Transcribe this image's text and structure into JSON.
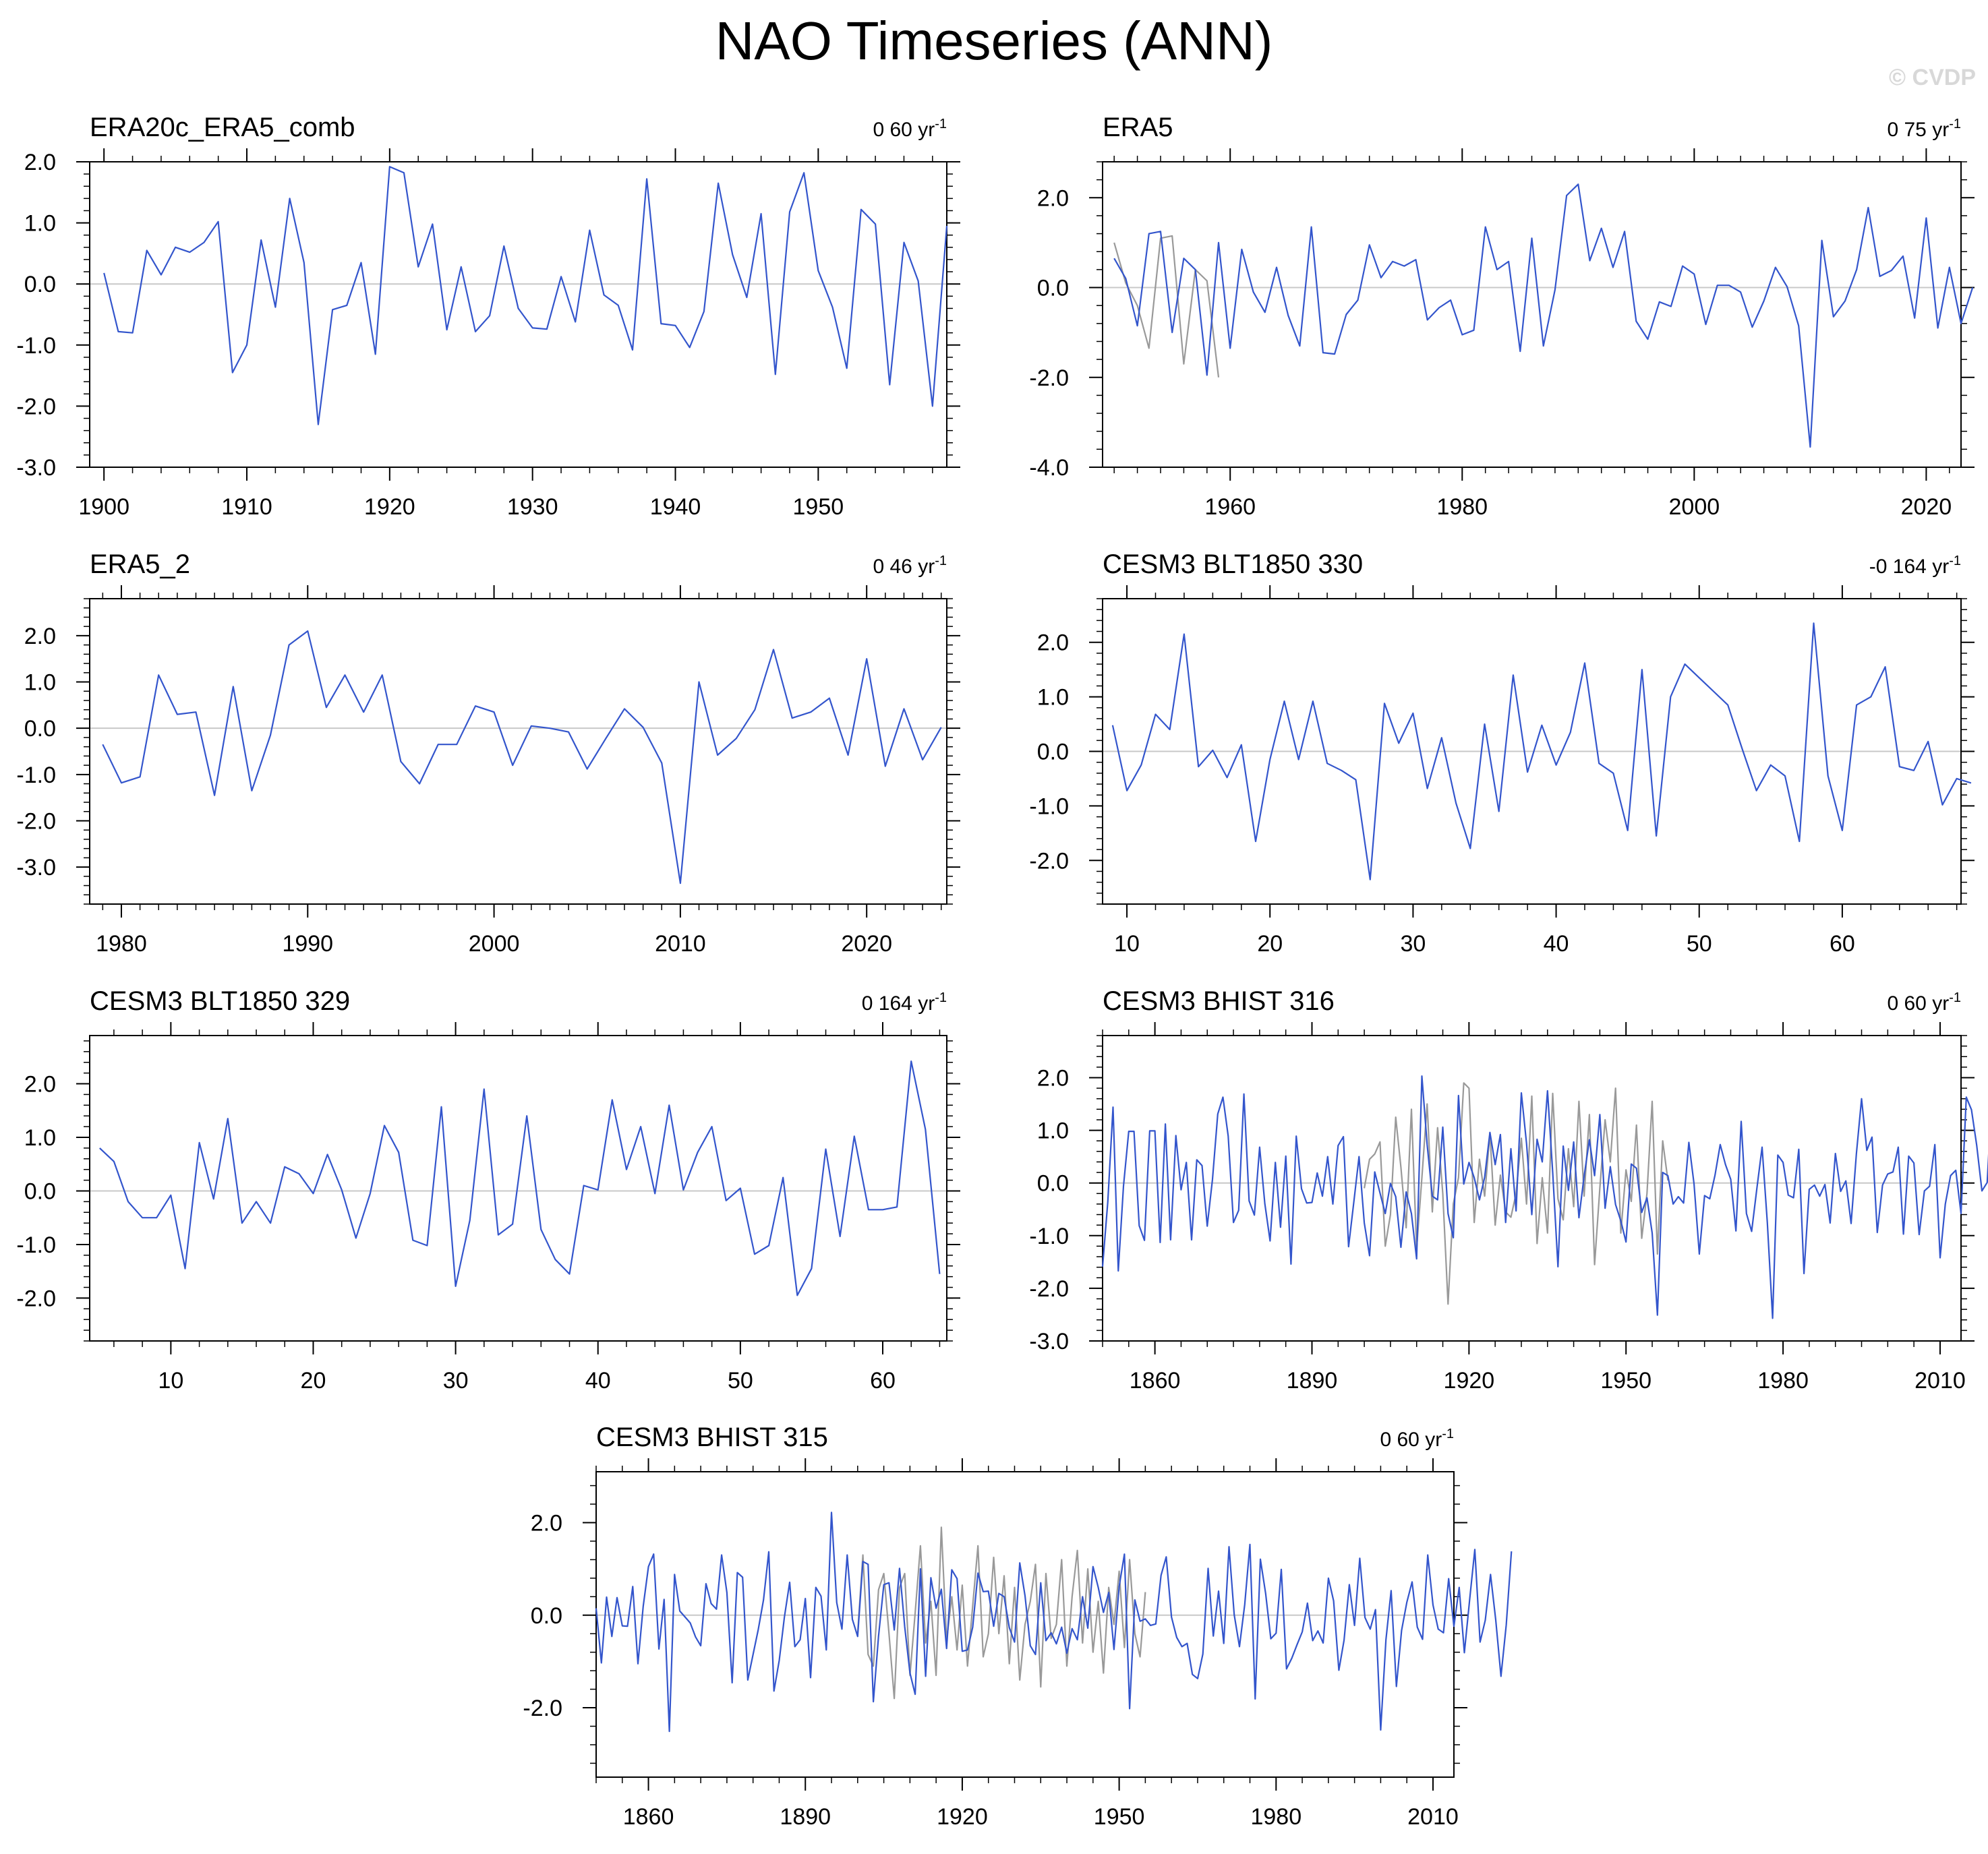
{
  "title": "NAO Timeseries (ANN)",
  "watermark": "© CVDP",
  "colors": {
    "series": "#3355cc",
    "obs": "#999999",
    "zero_line": "#c8c8c8",
    "axis": "#000000"
  },
  "chart_data": [
    {
      "type": "line",
      "title": "ERA20c_ERA5_comb",
      "trend_value": "0 60",
      "trend_unit": "yr",
      "trend_exp": "-1",
      "xlim": [
        1899,
        1959
      ],
      "ylim": [
        -3.0,
        2.0
      ],
      "xticks": [
        1900,
        1910,
        1920,
        1930,
        1940,
        1950
      ],
      "yticks": [
        -3.0,
        -2.0,
        -1.0,
        0.0,
        1.0,
        2.0
      ],
      "x_start": 1900,
      "series": [
        {
          "values": [
            0.18,
            -0.78,
            -0.8,
            0.55,
            0.15,
            0.6,
            0.52,
            0.68,
            1.02,
            -1.45,
            -1.0,
            0.72,
            -0.38,
            1.4,
            0.35,
            -2.3,
            -0.42,
            -0.35,
            0.35,
            -1.15,
            1.92,
            1.82,
            0.28,
            0.98,
            -0.75,
            0.28,
            -0.78,
            -0.52,
            0.62,
            -0.4,
            -0.72,
            -0.74,
            0.12,
            -0.62,
            0.88,
            -0.18,
            -0.35,
            -1.08,
            1.72,
            -0.65,
            -0.68,
            -1.04,
            -0.45,
            1.65,
            0.48,
            -0.22,
            1.15,
            -1.48,
            1.18,
            1.82,
            0.22,
            -0.38,
            -1.38,
            1.22,
            0.98,
            -1.65,
            0.68,
            0.05,
            -2.0,
            0.95
          ]
        }
      ]
    },
    {
      "type": "line",
      "title": "ERA5",
      "trend_value": "0 75",
      "trend_unit": "yr",
      "trend_exp": "-1",
      "xlim": [
        1949,
        2023
      ],
      "ylim": [
        -4.0,
        2.8
      ],
      "xticks": [
        1960,
        1980,
        2000,
        2020
      ],
      "yticks": [
        -4.0,
        -2.0,
        0.0,
        2.0
      ],
      "x_start": 1950,
      "series": [
        {
          "values": [
            0.65,
            0.2,
            -0.85,
            1.2,
            1.25,
            -1.0,
            0.65,
            0.4,
            -1.95,
            1.0,
            -1.35,
            0.85,
            -0.1,
            -0.55,
            0.45,
            -0.62,
            -1.3,
            1.35,
            -1.45,
            -1.48,
            -0.6,
            -0.28,
            0.95,
            0.22,
            0.58,
            0.48,
            0.62,
            -0.72,
            -0.45,
            -0.28,
            -1.05,
            -0.95,
            1.35,
            0.4,
            0.58,
            -1.42,
            1.1,
            -1.3,
            -0.05,
            2.05,
            2.3,
            0.6,
            1.32,
            0.45,
            1.25,
            -0.75,
            -1.15,
            -0.32,
            -0.42,
            0.48,
            0.3,
            -0.82,
            0.05,
            0.05,
            -0.1,
            -0.88,
            -0.3,
            0.45,
            0.02,
            -0.85,
            -3.55,
            1.05,
            -0.65,
            -0.3,
            0.4,
            1.78,
            0.25,
            0.38,
            0.7,
            -0.68,
            1.55,
            -0.9,
            0.45,
            -0.8,
            0.0
          ]
        },
        {
          "values": [
            1.0,
            0.1,
            -0.4,
            -1.35,
            1.1,
            1.15,
            -1.7,
            0.4,
            0.15,
            -2.0
          ],
          "style": "obs"
        }
      ]
    },
    {
      "type": "line",
      "title": "ERA5_2",
      "trend_value": "0 46",
      "trend_unit": "yr",
      "trend_exp": "-1",
      "xlim": [
        1978.3,
        2024.3
      ],
      "ylim": [
        -3.8,
        2.8
      ],
      "xticks": [
        1980,
        1990,
        2000,
        2010,
        2020
      ],
      "yticks": [
        -3.0,
        -2.0,
        -1.0,
        0.0,
        1.0,
        2.0
      ],
      "x_start": 1979,
      "series": [
        {
          "values": [
            -0.35,
            -1.18,
            -1.05,
            1.15,
            0.3,
            0.35,
            -1.45,
            0.9,
            -1.35,
            -0.15,
            1.8,
            2.1,
            0.45,
            1.15,
            0.35,
            1.15,
            -0.72,
            -1.2,
            -0.35,
            -0.35,
            0.48,
            0.35,
            -0.8,
            0.05,
            0.0,
            -0.08,
            -0.88,
            -0.22,
            0.42,
            0.02,
            -0.75,
            -3.35,
            1.0,
            -0.58,
            -0.22,
            0.4,
            1.7,
            0.22,
            0.35,
            0.65,
            -0.58,
            1.5,
            -0.82,
            0.42,
            -0.68,
            0.02
          ]
        }
      ]
    },
    {
      "type": "line",
      "title": "CESM3 BLT1850 330",
      "trend_value": "-0 164",
      "trend_unit": "yr",
      "trend_exp": "-1",
      "xlim": [
        8.3,
        68.3
      ],
      "ylim": [
        -2.8,
        2.8
      ],
      "xticks": [
        10,
        20,
        30,
        40,
        50,
        60
      ],
      "yticks": [
        -2.0,
        -1.0,
        0.0,
        1.0,
        2.0
      ],
      "x_start": 9,
      "series": [
        {
          "values": [
            0.48,
            -0.72,
            -0.25,
            0.68,
            0.4,
            2.15,
            -0.28,
            0.02,
            -0.48,
            0.12,
            -1.65,
            -0.15,
            0.92,
            -0.15,
            0.92,
            -0.22,
            -0.35,
            -0.52,
            -2.35,
            0.88,
            0.15,
            0.7,
            -0.68,
            0.25,
            -0.95,
            -1.78,
            0.5,
            -1.1,
            1.4,
            -0.38,
            0.48,
            -0.25,
            0.35,
            1.62,
            -0.22,
            -0.4,
            -1.45,
            1.5,
            -1.55,
            1.0,
            1.6,
            1.35,
            1.1,
            0.85,
            0.05,
            -0.72,
            -0.25,
            -0.45,
            -1.65,
            2.35,
            -0.45,
            -1.45,
            0.85,
            1.0,
            1.55,
            -0.28,
            -0.35,
            0.18,
            -0.98,
            -0.5,
            -0.58
          ]
        }
      ]
    },
    {
      "type": "line",
      "title": "CESM3 BLT1850 329",
      "trend_value": "0 164",
      "trend_unit": "yr",
      "trend_exp": "-1",
      "xlim": [
        4.3,
        64.5
      ],
      "ylim": [
        -2.8,
        2.9
      ],
      "xticks": [
        10,
        20,
        30,
        40,
        50,
        60
      ],
      "yticks": [
        -2.0,
        -1.0,
        0.0,
        1.0,
        2.0
      ],
      "x_start": 5,
      "series": [
        {
          "values": [
            0.8,
            0.55,
            -0.2,
            -0.5,
            -0.5,
            -0.08,
            -1.45,
            0.9,
            -0.15,
            1.35,
            -0.6,
            -0.2,
            -0.6,
            0.45,
            0.32,
            -0.05,
            0.68,
            0.02,
            -0.88,
            -0.05,
            1.22,
            0.72,
            -0.92,
            -1.02,
            1.57,
            -1.78,
            -0.55,
            1.9,
            -0.82,
            -0.62,
            1.4,
            -0.72,
            -1.28,
            -1.55,
            0.1,
            0.02,
            1.7,
            0.4,
            1.2,
            -0.05,
            1.6,
            0.02,
            0.72,
            1.2,
            -0.18,
            0.05,
            -1.18,
            -1.02,
            0.25,
            -1.95,
            -1.45,
            0.78,
            -0.85,
            1.02,
            -0.35,
            -0.35,
            -0.3,
            2.42,
            1.15,
            -1.55
          ]
        }
      ]
    },
    {
      "type": "line",
      "title": "CESM3 BHIST 316",
      "trend_value": "0 60",
      "trend_unit": "yr",
      "trend_exp": "-1",
      "xlim": [
        1850,
        2014
      ],
      "ylim": [
        -3.0,
        2.8
      ],
      "xticks": [
        1860,
        1890,
        1920,
        1950,
        1980,
        2010
      ],
      "yticks": [
        -3.0,
        -2.0,
        -1.0,
        0.0,
        1.0,
        2.0
      ],
      "x_start": 1850,
      "series": [
        {
          "values": [
            -1.59,
            -0.35,
            1.44,
            -1.67,
            -0.06,
            0.98,
            0.98,
            -0.81,
            -1.09,
            0.99,
            0.99,
            -1.13,
            1.12,
            -1.08,
            0.9,
            -0.13,
            0.39,
            -1.08,
            0.44,
            0.33,
            -0.82,
            0.07,
            1.31,
            1.63,
            0.89,
            -0.75,
            -0.52,
            1.69,
            -0.34,
            -0.61,
            0.68,
            -0.39,
            -1.1,
            0.39,
            -0.84,
            0.51,
            -1.54,
            0.89,
            -0.11,
            -0.38,
            -0.37,
            0.19,
            -0.25,
            0.5,
            -0.4,
            0.71,
            0.88,
            -1.21,
            -0.36,
            0.5,
            -0.76,
            -1.38,
            0.21,
            -0.19,
            -0.58,
            -0.01,
            -0.26,
            -1.22,
            -0.17,
            -0.58,
            -1.44,
            2.03,
            0.73,
            -0.25,
            -0.32,
            1.06,
            -0.58,
            -1.04,
            1.66,
            -0.02,
            0.39,
            0.1,
            -0.32,
            0.11,
            0.96,
            0.35,
            0.92,
            -0.75,
            0.65,
            -0.53,
            1.71,
            0.75,
            -0.6,
            0.83,
            0.4,
            1.75,
            0.2,
            -1.59,
            0.7,
            -0.14,
            0.78,
            -0.66,
            0.13,
            0.82,
            0.14,
            1.3,
            -0.48,
            0.31,
            -0.41,
            -0.72,
            -1.12,
            0.36,
            0.28,
            -0.56,
            -0.28,
            -0.95,
            -2.51,
            0.2,
            0.14,
            -0.4,
            -0.26,
            -0.38,
            0.77,
            -0.02,
            -1.35,
            -0.24,
            -0.3,
            0.15,
            0.73,
            0.35,
            0.07,
            -0.91,
            1.17,
            -0.58,
            -0.92,
            -0.1,
            0.68,
            -0.76,
            -2.57,
            0.53,
            0.39,
            -0.23,
            -0.28,
            0.64,
            -1.72,
            -0.12,
            -0.04,
            -0.25,
            -0.03,
            -0.76,
            0.56,
            -0.16,
            0.04,
            -0.77,
            0.55,
            1.6,
            0.62,
            0.87,
            -0.94,
            -0.04,
            0.17,
            0.21,
            0.68,
            -0.97,
            0.51,
            0.38,
            -0.98,
            -0.15,
            -0.06,
            0.73,
            -1.42,
            -0.4,
            0.14,
            0.24,
            -0.58,
            1.63,
            1.39,
            0.71,
            -0.15,
            0.01,
            1.86,
            0.63,
            1.84,
            -0.34
          ]
        },
        {
          "values": [
            -0.1,
            0.45,
            0.55,
            0.78,
            -1.2,
            -0.6,
            1.25,
            0.3,
            -0.85,
            1.4,
            -1.25,
            0.1,
            1.5,
            -0.55,
            1.05,
            -0.2,
            -2.3,
            -0.4,
            0.1,
            1.9,
            1.8,
            -0.75,
            0.45,
            -0.25,
            0.95,
            -0.8,
            0.15,
            -0.55,
            -0.65,
            -0.2,
            0.85,
            -0.4,
            1.65,
            -1.15,
            0.1,
            -0.95,
            1.7,
            -0.3,
            -0.7,
            0.65,
            -0.45,
            1.55,
            -0.25,
            1.3,
            -1.55,
            -0.1,
            1.2,
            0.4,
            1.8,
            -0.95,
            0.25,
            -0.35,
            1.1,
            -1.05,
            -0.2,
            1.55,
            -1.35,
            0.8,
            0.05
          ],
          "style": "obs",
          "x_start": 1900
        }
      ]
    },
    {
      "type": "line",
      "title": "CESM3 BHIST 315",
      "trend_value": "0 60",
      "trend_unit": "yr",
      "trend_exp": "-1",
      "xlim": [
        1850,
        2014
      ],
      "ylim": [
        -3.5,
        3.1
      ],
      "xticks": [
        1860,
        1890,
        1920,
        1950,
        1980,
        2010
      ],
      "yticks": [
        -2.0,
        0.0,
        2.0
      ],
      "x_start": 1850,
      "series": [
        {
          "values": [
            0.15,
            -1.03,
            0.39,
            -0.46,
            0.38,
            -0.23,
            -0.24,
            0.62,
            -1.05,
            0.19,
            1.05,
            1.32,
            -0.73,
            0.34,
            -2.51,
            0.88,
            0.09,
            -0.04,
            -0.17,
            -0.47,
            -0.66,
            0.68,
            0.25,
            0.13,
            1.3,
            0.49,
            -1.46,
            0.92,
            0.82,
            -1.4,
            -0.85,
            -0.31,
            0.33,
            1.37,
            -1.64,
            -0.98,
            -0.04,
            0.71,
            -0.68,
            -0.53,
            0.36,
            -1.35,
            0.6,
            0.41,
            -0.75,
            2.22,
            0.27,
            -0.3,
            1.3,
            -0.09,
            -0.46,
            1.16,
            1.1,
            -1.87,
            -0.45,
            0.66,
            0.7,
            -0.32,
            1.01,
            -0.25,
            -1.25,
            -1.71,
            1.0,
            -1.32,
            0.81,
            0.15,
            0.56,
            -0.72,
            0.98,
            0.79,
            -0.78,
            -0.75,
            -0.26,
            0.91,
            0.51,
            0.52,
            -0.24,
            0.47,
            0.4,
            -0.27,
            -0.58,
            1.13,
            0.42,
            -0.66,
            -0.85,
            0.7,
            -0.55,
            -0.38,
            -0.62,
            -0.26,
            -0.82,
            -0.29,
            -0.53,
            0.4,
            -0.28,
            1.05,
            0.6,
            0.06,
            0.49,
            -0.74,
            0.62,
            1.32,
            -2.02,
            0.33,
            -0.13,
            -0.08,
            -0.22,
            -0.19,
            0.86,
            1.26,
            -0.04,
            -0.48,
            -0.68,
            -0.61,
            -1.28,
            -1.37,
            -0.84,
            1.01,
            -0.45,
            0.52,
            -0.61,
            1.48,
            0.01,
            -0.68,
            0.23,
            1.53,
            -1.81,
            1.21,
            0.47,
            -0.51,
            -0.39,
            0.99,
            -1.16,
            -0.93,
            -0.64,
            -0.36,
            0.26,
            -0.55,
            -0.34,
            -0.6,
            0.8,
            0.31,
            -1.19,
            -0.54,
            0.66,
            -0.22,
            1.23,
            -0.05,
            -0.3,
            0.12,
            -2.48,
            -0.53,
            0.53,
            -1.54,
            -0.33,
            0.28,
            0.72,
            -0.26,
            -0.52,
            1.3,
            0.22,
            -0.3,
            -0.38,
            0.79,
            -0.24,
            0.6,
            -0.81,
            0.33,
            1.42,
            -0.58,
            -0.11,
            0.88,
            -0.1,
            -1.32,
            -0.21,
            1.38
          ]
        },
        {
          "values": [
            -0.4,
            1.3,
            -0.85,
            -1.1,
            0.55,
            0.9,
            -0.4,
            -1.8,
            0.6,
            0.9,
            -1.3,
            0.05,
            1.5,
            -0.6,
            0.3,
            -1.3,
            1.9,
            -0.55,
            0.4,
            -0.75,
            0.65,
            -1.1,
            0.2,
            1.5,
            -0.9,
            -0.4,
            1.25,
            -0.4,
            0.85,
            -1.05,
            0.6,
            -1.4,
            -0.2,
            0.3,
            1.1,
            -1.55,
            0.9,
            -0.5,
            -0.2,
            1.2,
            -1.1,
            0.4,
            1.4,
            -0.6,
            1.0,
            -0.8,
            0.3,
            -1.25,
            0.6,
            -0.2,
            0.95,
            -0.7,
            1.2,
            -0.4,
            -0.9,
            0.5
          ],
          "style": "obs",
          "x_start": 1900
        }
      ]
    }
  ]
}
